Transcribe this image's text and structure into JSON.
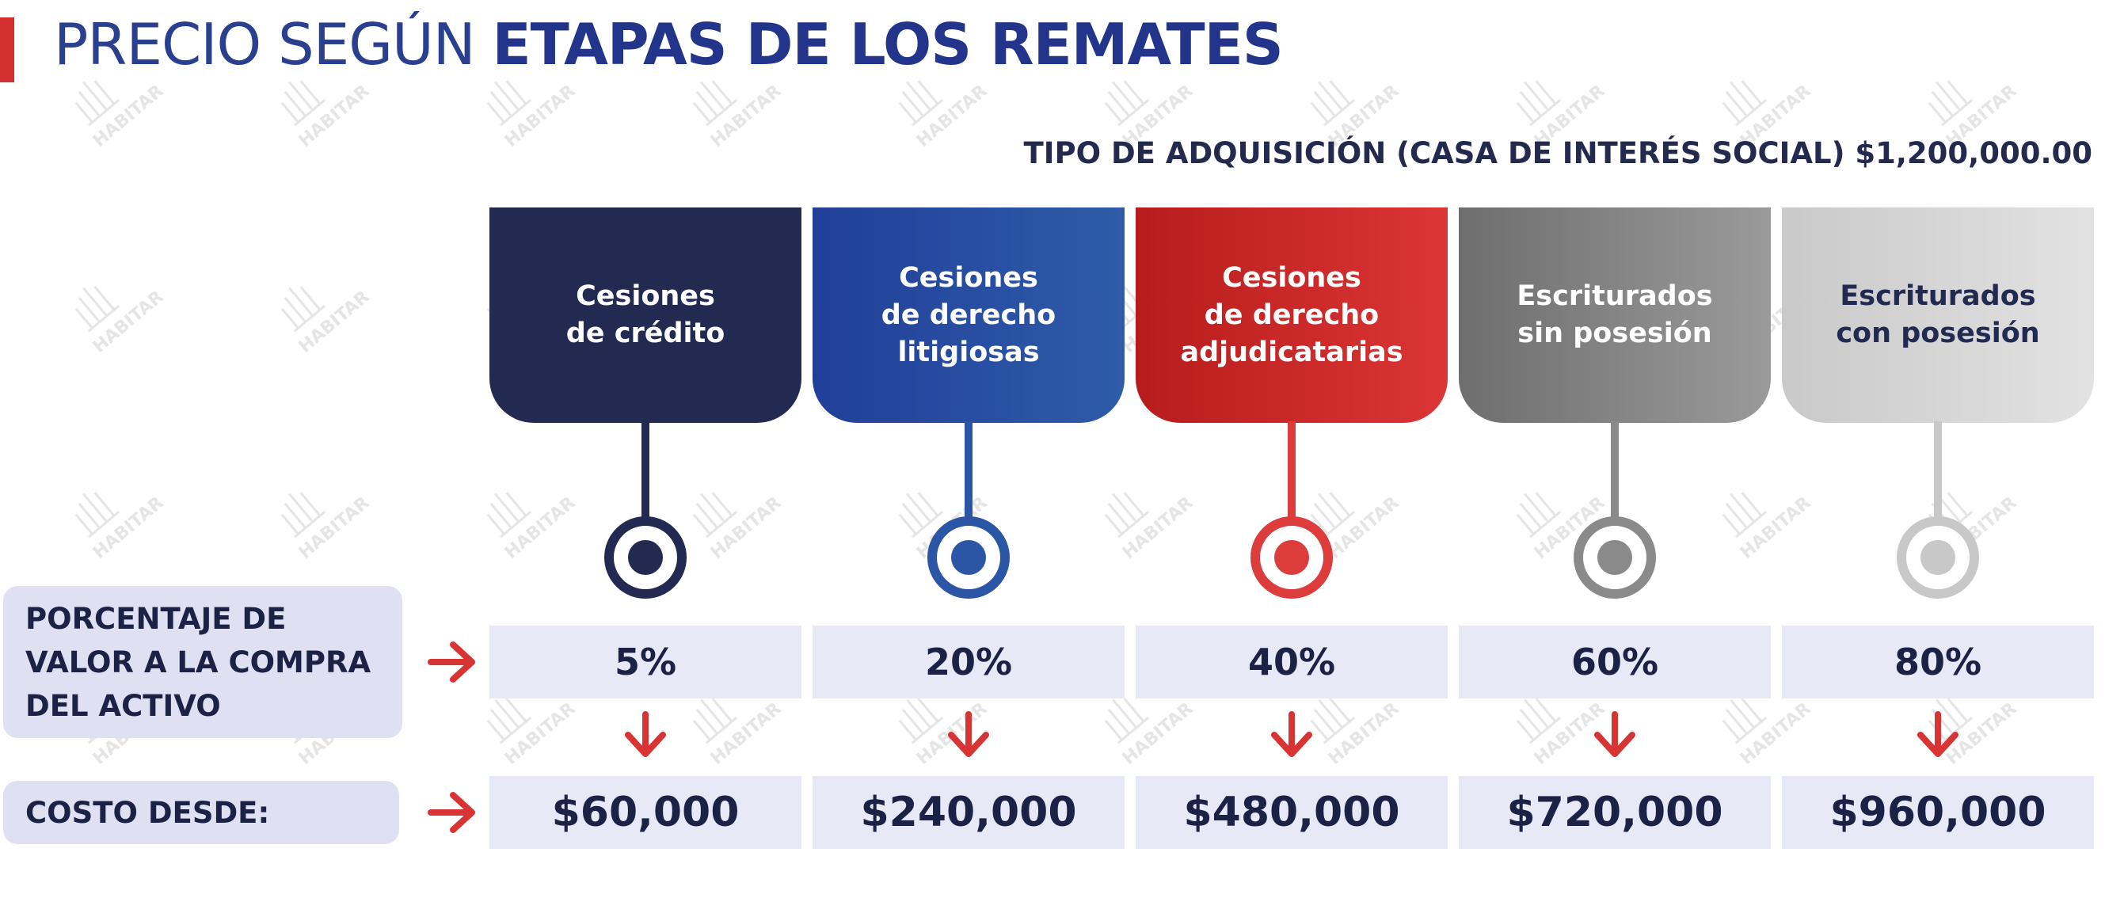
{
  "title": {
    "light": "PRECIO SEGÚN",
    "strong": "ETAPAS DE LOS REMATES"
  },
  "subtitle": "TIPO DE ADQUISICIÓN (CASA DE INTERÉS SOCIAL) $1,200,000.00",
  "row_labels": {
    "percentage": "PORCENTAJE DE\nVALOR A LA COMPRA\nDEL ACTIVO",
    "cost": "COSTO DESDE:"
  },
  "watermark": "HABITAR",
  "stages": [
    {
      "label": "Cesiones\nde crédito",
      "percentage": "5%",
      "cost": "$60,000",
      "color": "#232a52",
      "color_end": "#232a52",
      "text_color": "#ffffff",
      "dot_color": "#232a52",
      "ring_color": "#232a52",
      "connector_color": "#232a52"
    },
    {
      "label": "Cesiones\nde derecho\nlitigiosas",
      "percentage": "20%",
      "cost": "$240,000",
      "color": "#213f99",
      "color_end": "#2e5ca9",
      "text_color": "#ffffff",
      "dot_color": "#2b56a6",
      "ring_color": "#2b56a6",
      "connector_color": "#2b56a6"
    },
    {
      "label": "Cesiones\nde derecho\nadjudicatarias",
      "percentage": "40%",
      "cost": "$480,000",
      "color": "#b71c1c",
      "color_end": "#dc3535",
      "text_color": "#ffffff",
      "dot_color": "#dc3c3c",
      "ring_color": "#dc3c3c",
      "connector_color": "#dc3c3c"
    },
    {
      "label": "Escriturados\nsin posesión",
      "percentage": "60%",
      "cost": "$720,000",
      "color": "#6e6e6e",
      "color_end": "#9a9a9a",
      "text_color": "#ffffff",
      "dot_color": "#8a8a8a",
      "ring_color": "#8a8a8a",
      "connector_color": "#8a8a8a"
    },
    {
      "label": "Escriturados\ncon posesión",
      "percentage": "80%",
      "cost": "$960,000",
      "color": "#c9c9c9",
      "color_end": "#e2e2e2",
      "text_color": "#232a52",
      "dot_color": "#c8c8c8",
      "ring_color": "#c8c8c8",
      "connector_color": "#c8c8c8"
    }
  ],
  "arrow_color": "#d93434"
}
